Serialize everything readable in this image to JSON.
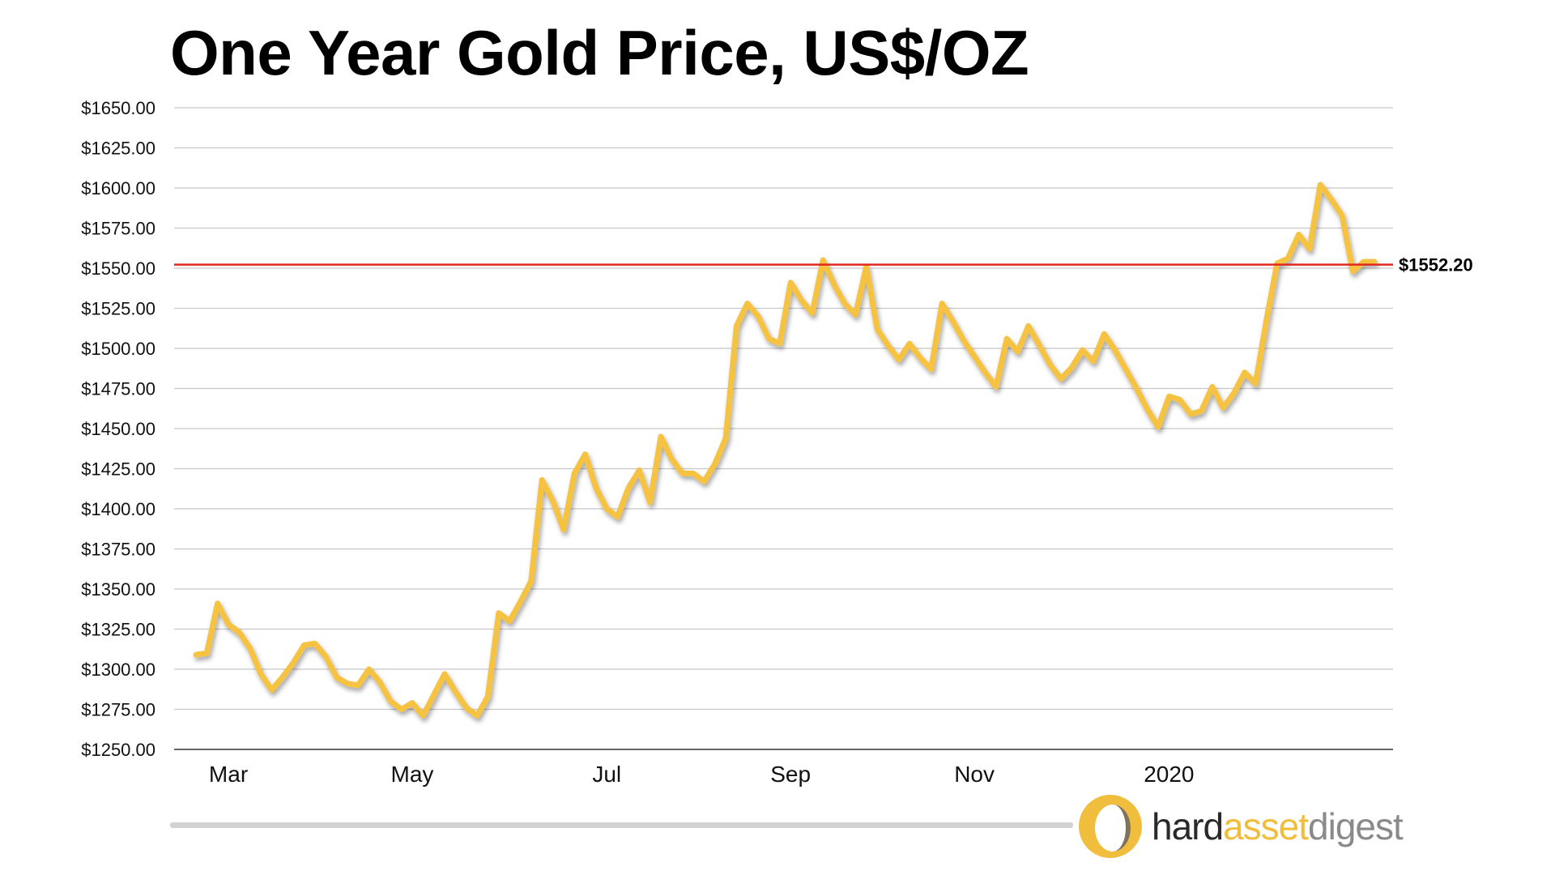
{
  "title": "One Year Gold Price, US$/OZ",
  "brand": {
    "part1": "hard",
    "part2": "asset",
    "part3": "digest",
    "colors": {
      "part1": "#2a2a2a",
      "part2": "#f0be3c",
      "part3": "#8a8a8a"
    }
  },
  "chart_data": {
    "type": "line",
    "title": "One Year Gold Price, US$/OZ",
    "xlabel": "",
    "ylabel": "",
    "ylim": [
      1250,
      1650
    ],
    "y_step": 25,
    "y_tick_labels": [
      "$1250.00",
      "$1275.00",
      "$1300.00",
      "$1325.00",
      "$1350.00",
      "$1375.00",
      "$1400.00",
      "$1425.00",
      "$1450.00",
      "$1475.00",
      "$1500.00",
      "$1525.00",
      "$1550.00",
      "$1575.00",
      "$1600.00",
      "$1625.00",
      "$1650.00"
    ],
    "x_tick_labels": [
      {
        "label": "Mar",
        "index": 3
      },
      {
        "label": "May",
        "index": 20
      },
      {
        "label": "Jul",
        "index": 38
      },
      {
        "label": "Sep",
        "index": 55
      },
      {
        "label": "Nov",
        "index": 72
      },
      {
        "label": "2020",
        "index": 90
      }
    ],
    "grid": true,
    "series": [
      {
        "name": "Gold price (US$/oz)",
        "color": "#f5c242",
        "values": [
          1309,
          1310,
          1341,
          1328,
          1323,
          1313,
          1297,
          1287,
          1295,
          1304,
          1315,
          1316,
          1308,
          1295,
          1291,
          1290,
          1300,
          1292,
          1280,
          1275,
          1279,
          1271,
          1284,
          1297,
          1286,
          1276,
          1271,
          1283,
          1335,
          1330,
          1342,
          1355,
          1418,
          1405,
          1387,
          1422,
          1434,
          1413,
          1400,
          1395,
          1413,
          1424,
          1404,
          1445,
          1431,
          1422,
          1422,
          1417,
          1428,
          1444,
          1514,
          1528,
          1520,
          1506,
          1503,
          1541,
          1530,
          1522,
          1555,
          1540,
          1528,
          1521,
          1551,
          1512,
          1502,
          1493,
          1503,
          1494,
          1487,
          1528,
          1517,
          1505,
          1495,
          1485,
          1476,
          1506,
          1498,
          1514,
          1502,
          1490,
          1481,
          1488,
          1499,
          1492,
          1509,
          1499,
          1487,
          1475,
          1462,
          1451,
          1470,
          1468,
          1459,
          1461,
          1476,
          1463,
          1472,
          1485,
          1478,
          1517,
          1553,
          1556,
          1571,
          1562,
          1602,
          1593,
          1583,
          1548,
          1554,
          1554
        ]
      }
    ],
    "reference_line": {
      "value": 1552.2,
      "label": "$1552.20",
      "color": "#e0281e"
    },
    "legend": "none"
  }
}
